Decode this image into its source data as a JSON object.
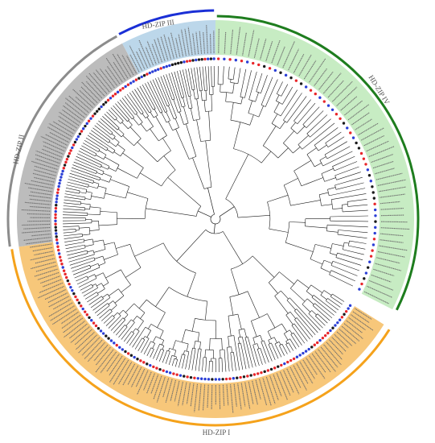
{
  "figure": {
    "subfamilies": [
      {
        "id": "iv",
        "label": "HD-ZIP IV",
        "ring_color": "#1e7d1e",
        "band_color": "#c7ecc3",
        "leaf_count": 56
      },
      {
        "id": "i",
        "label": "HD-ZIP I",
        "ring_color": "#f5a21b",
        "band_color": "#f7c77a",
        "leaf_count": 110
      },
      {
        "id": "ii",
        "label": "HD-ZIP II",
        "ring_color": "#8c8c8c",
        "band_color": "#bcbcbc",
        "leaf_count": 62
      },
      {
        "id": "iii",
        "label": "HD-ZIP III",
        "ring_color": "#1a2fd6",
        "band_color": "#bcd7ea",
        "leaf_count": 26
      }
    ],
    "marker_colors": {
      "red": "#e8262a",
      "blue": "#2b3fd6",
      "black": "#1a1a1a"
    },
    "branch_color": "#1a1a1a"
  }
}
